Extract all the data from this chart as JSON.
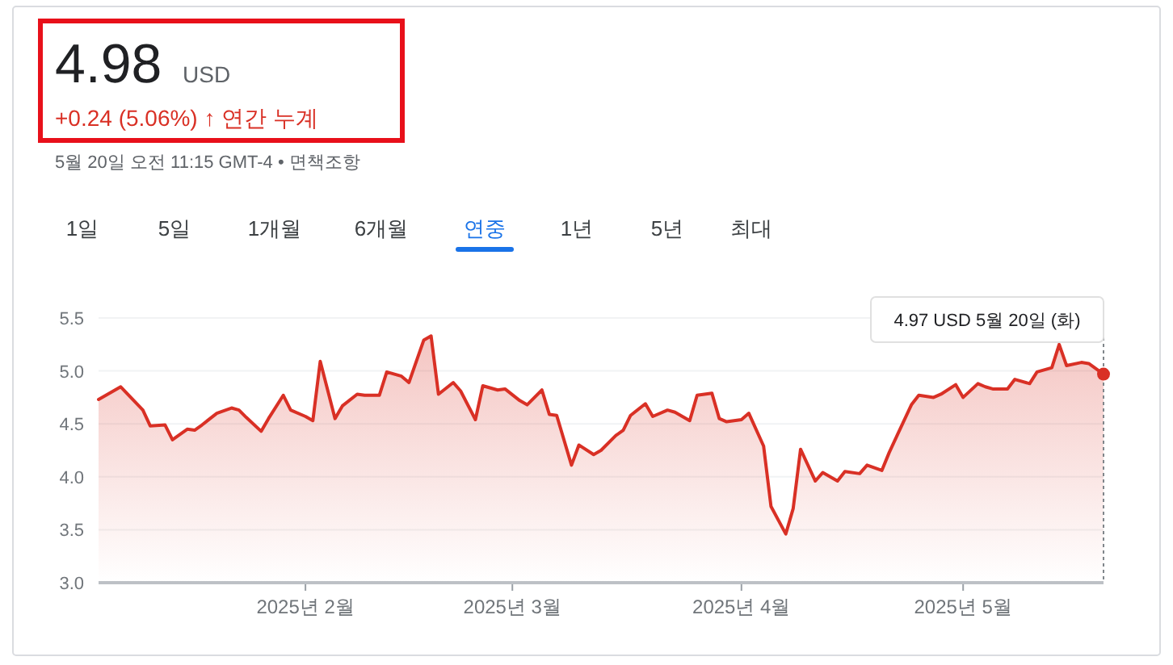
{
  "chart_data": {
    "type": "area",
    "title": "4.98",
    "subtitle": "+0.24 (5.06%) ↑ 연간 누계",
    "annotations": [
      "USD",
      "5월 20일 오전 11:15 GMT-4 • 면책조항",
      "1일",
      "5일",
      "1개월",
      "6개월",
      "연중",
      "1년",
      "5년",
      "최대",
      {
        "text": "4.97 USD  5월 20일 (화)",
        "x": "2025-05-20",
        "y": 4.97
      }
    ],
    "x": [
      "2025-01-04",
      "2025-01-07",
      "2025-01-10",
      "2025-01-11",
      "2025-01-13",
      "2025-01-14",
      "2025-01-16",
      "2025-01-17",
      "2025-01-18",
      "2025-01-20",
      "2025-01-22",
      "2025-01-23",
      "2025-01-24",
      "2025-01-26",
      "2025-01-27",
      "2025-01-29",
      "2025-01-30",
      "2025-02-01",
      "2025-02-02",
      "2025-02-03",
      "2025-02-05",
      "2025-02-06",
      "2025-02-08",
      "2025-02-09",
      "2025-02-11",
      "2025-02-12",
      "2025-02-14",
      "2025-02-15",
      "2025-02-17",
      "2025-02-18",
      "2025-02-19",
      "2025-02-21",
      "2025-02-22",
      "2025-02-24",
      "2025-02-25",
      "2025-02-27",
      "2025-02-28",
      "2025-03-02",
      "2025-03-03",
      "2025-03-05",
      "2025-03-06",
      "2025-03-07",
      "2025-03-09",
      "2025-03-10",
      "2025-03-12",
      "2025-03-13",
      "2025-03-15",
      "2025-03-16",
      "2025-03-17",
      "2025-03-19",
      "2025-03-20",
      "2025-03-22",
      "2025-03-23",
      "2025-03-25",
      "2025-03-26",
      "2025-03-28",
      "2025-03-29",
      "2025-03-30",
      "2025-04-01",
      "2025-04-02",
      "2025-04-04",
      "2025-04-05",
      "2025-04-07",
      "2025-04-08",
      "2025-04-09",
      "2025-04-11",
      "2025-04-12",
      "2025-04-14",
      "2025-04-15",
      "2025-04-17",
      "2025-04-18",
      "2025-04-20",
      "2025-04-21",
      "2025-04-22",
      "2025-04-24",
      "2025-04-25",
      "2025-04-27",
      "2025-04-28",
      "2025-04-30",
      "2025-05-01",
      "2025-05-03",
      "2025-05-04",
      "2025-05-05",
      "2025-05-07",
      "2025-05-08",
      "2025-05-10",
      "2025-05-11",
      "2025-05-13",
      "2025-05-14",
      "2025-05-15",
      "2025-05-17",
      "2025-05-18",
      "2025-05-20"
    ],
    "series": [
      {
        "color": "#d93025",
        "values": [
          4.73,
          4.85,
          4.63,
          4.48,
          4.49,
          4.35,
          4.45,
          4.44,
          4.49,
          4.6,
          4.65,
          4.63,
          4.56,
          4.43,
          4.55,
          4.77,
          4.63,
          4.57,
          4.53,
          5.09,
          4.55,
          4.67,
          4.78,
          4.77,
          4.77,
          4.99,
          4.95,
          4.89,
          5.29,
          5.33,
          4.78,
          4.89,
          4.81,
          4.54,
          4.86,
          4.82,
          4.83,
          4.72,
          4.68,
          4.82,
          4.59,
          4.58,
          4.11,
          4.3,
          4.21,
          4.25,
          4.39,
          4.44,
          4.58,
          4.69,
          4.57,
          4.63,
          4.61,
          4.53,
          4.77,
          4.79,
          4.55,
          4.52,
          4.54,
          4.6,
          4.29,
          3.72,
          3.46,
          3.7,
          4.26,
          3.96,
          4.04,
          3.96,
          4.05,
          4.03,
          4.11,
          4.06,
          4.23,
          4.38,
          4.68,
          4.77,
          4.75,
          4.78,
          4.87,
          4.75,
          4.88,
          4.85,
          4.83,
          4.83,
          4.92,
          4.88,
          4.99,
          5.03,
          5.25,
          5.05,
          5.08,
          5.07,
          4.97
        ]
      }
    ],
    "xlim": [
      "2025-01-04",
      "2025-05-20"
    ],
    "xticks": [
      {
        "value": "2025-02-01",
        "label": "2025년 2월"
      },
      {
        "value": "2025-03-01",
        "label": "2025년 3월"
      },
      {
        "value": "2025-04-01",
        "label": "2025년 4월"
      },
      {
        "value": "2025-05-01",
        "label": "2025년 5월"
      }
    ],
    "ylim": [
      3.0,
      5.5
    ],
    "yticks": [
      {
        "value": 3.0,
        "label": "3.0"
      },
      {
        "value": 3.5,
        "label": "3.5"
      },
      {
        "value": 4.0,
        "label": "4.0"
      },
      {
        "value": 4.5,
        "label": "4.5"
      },
      {
        "value": 5.0,
        "label": "5.0"
      },
      {
        "value": 5.5,
        "label": "5.5"
      }
    ],
    "grid": "y"
  }
}
